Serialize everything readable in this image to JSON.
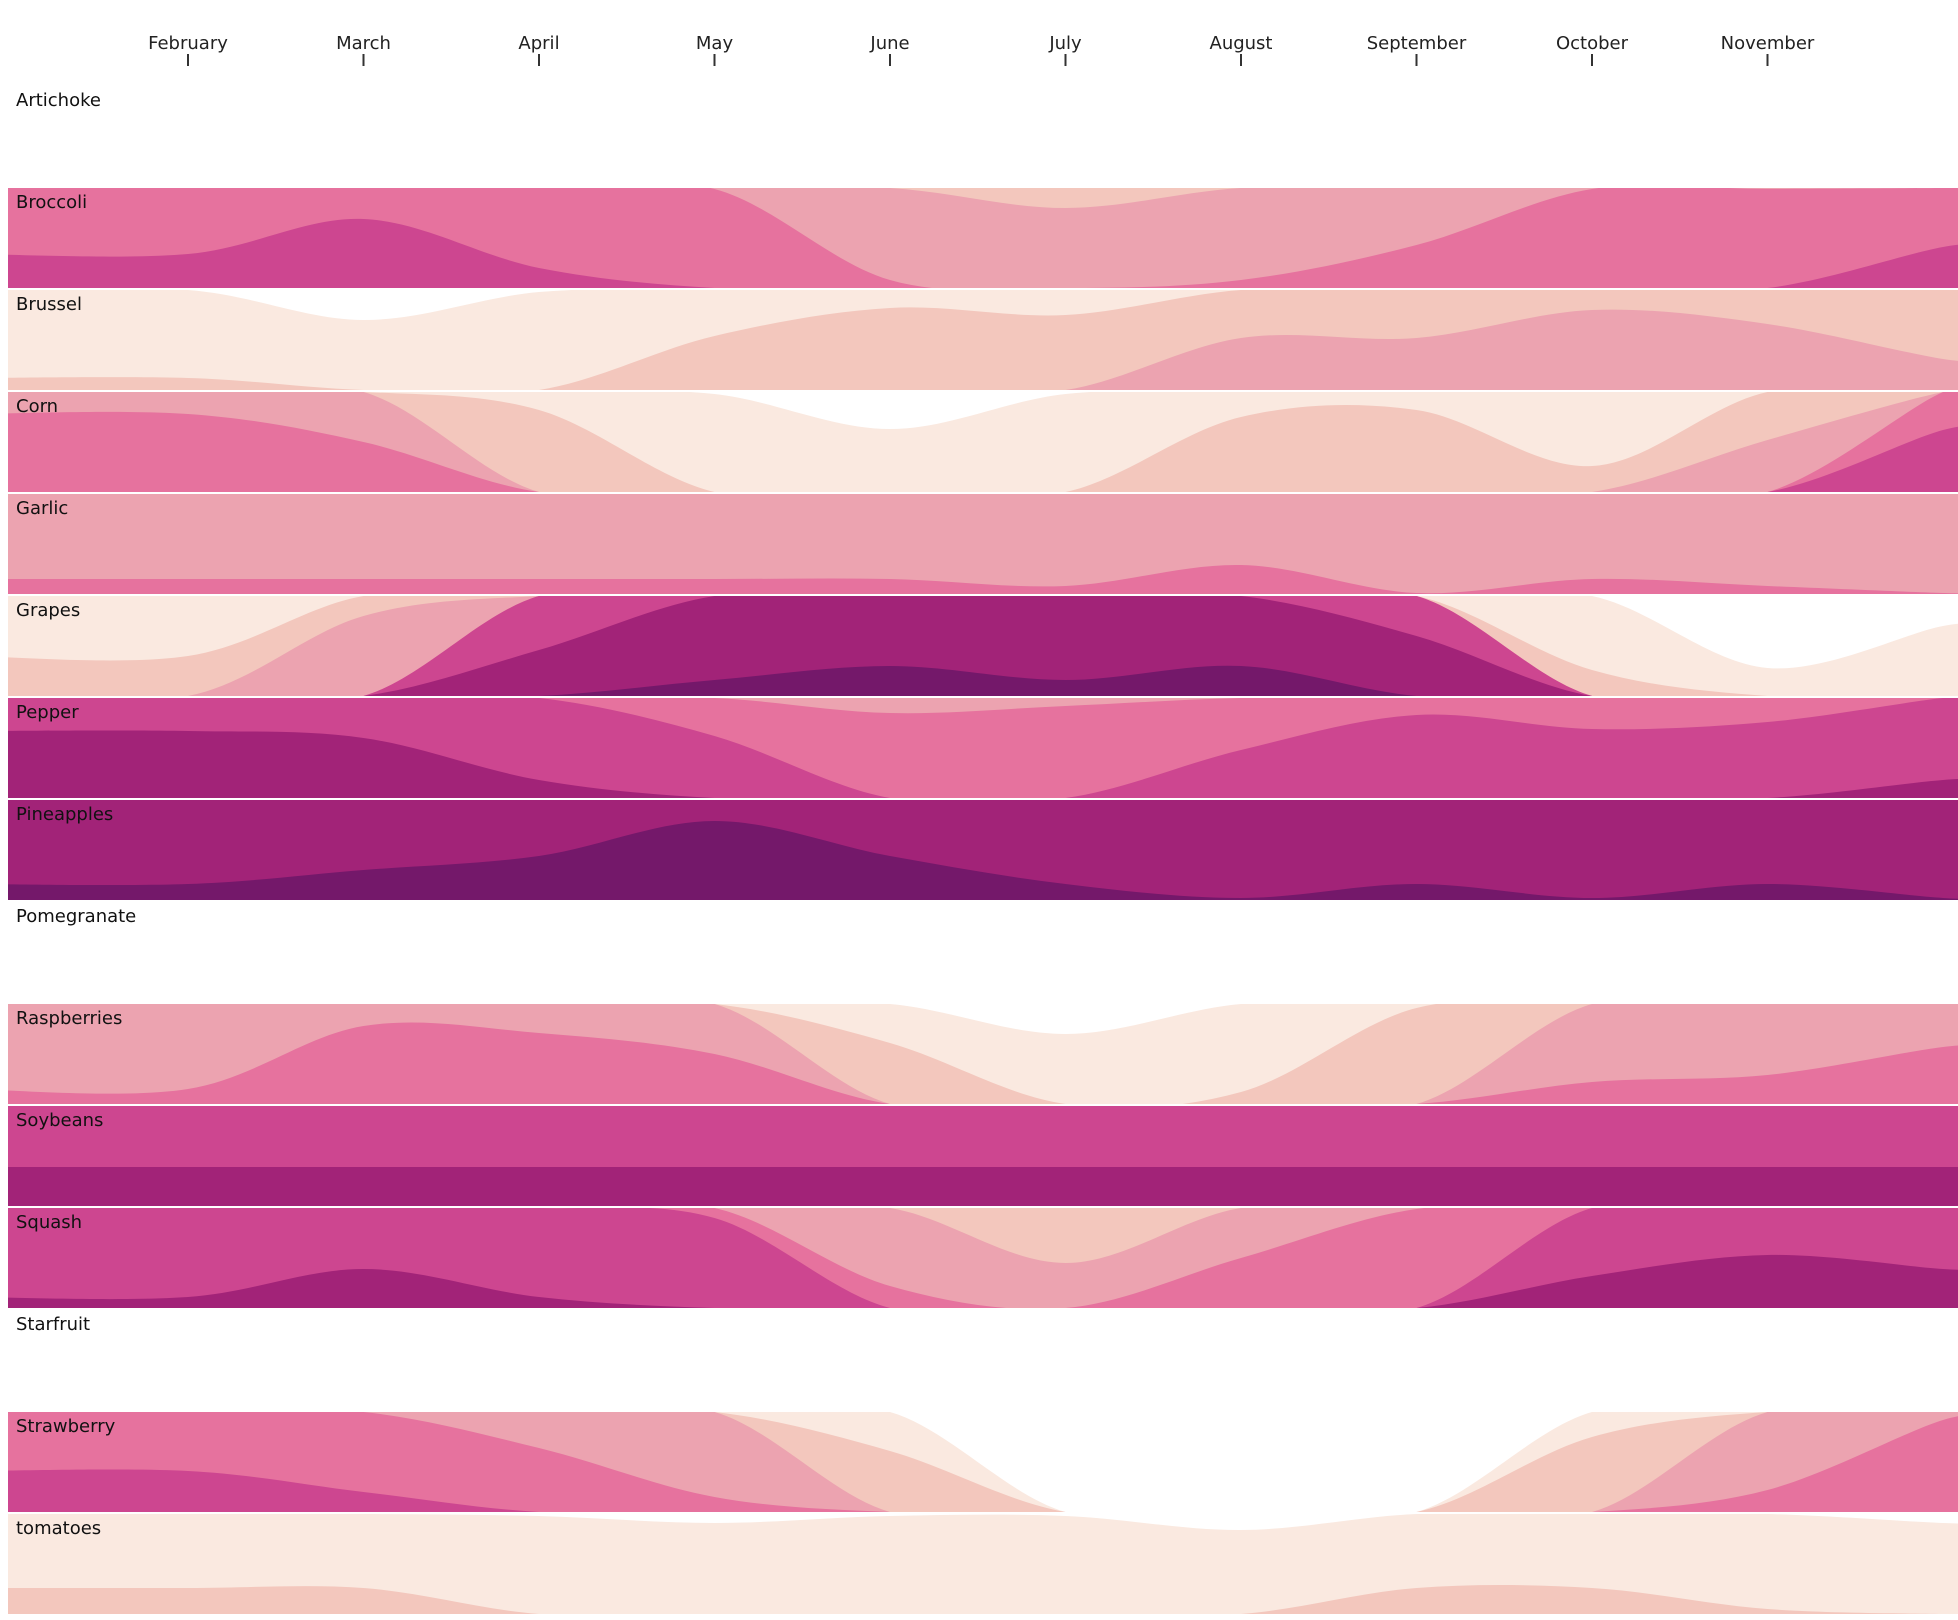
{
  "chart_data": {
    "type": "horizon",
    "x_axis": {
      "ticks": [
        "February",
        "March",
        "April",
        "May",
        "June",
        "July",
        "August",
        "September",
        "October",
        "November"
      ]
    },
    "value_scale": [
      0,
      1
    ],
    "band_colors": [
      "#fae9e0",
      "#f3c7bd",
      "#eca3b0",
      "#e6729e",
      "#cd4690",
      "#a22378",
      "#74186a"
    ],
    "series": [
      {
        "name": "Artichoke",
        "values": [
          0,
          0,
          0,
          0,
          0,
          0,
          0,
          0,
          0,
          0,
          0
        ]
      },
      {
        "name": "Broccoli",
        "values": [
          0.62,
          0.67,
          0.6,
          0.57,
          0.44,
          0.4,
          0.44,
          0.49,
          0.57,
          0.57,
          0.63
        ]
      },
      {
        "name": "Brussel",
        "values": [
          0.16,
          0.1,
          0.14,
          0.22,
          0.26,
          0.25,
          0.36,
          0.36,
          0.4,
          0.38,
          0.33
        ]
      },
      {
        "name": "Corn",
        "values": [
          0.54,
          0.5,
          0.26,
          0.14,
          0.09,
          0.14,
          0.25,
          0.26,
          0.18,
          0.36,
          0.66
        ]
      },
      {
        "name": "Garlic",
        "values": [
          0.45,
          0.45,
          0.45,
          0.45,
          0.45,
          0.44,
          0.47,
          0.43,
          0.45,
          0.44,
          0.43
        ]
      },
      {
        "name": "Grapes",
        "values": [
          0.2,
          0.4,
          0.78,
          0.88,
          0.9,
          0.88,
          0.9,
          0.8,
          0.18,
          0.04,
          0.1
        ]
      },
      {
        "name": "Pepper",
        "values": [
          0.81,
          0.8,
          0.74,
          0.66,
          0.55,
          0.56,
          0.64,
          0.69,
          0.67,
          0.68,
          0.74
        ]
      },
      {
        "name": "Pineapples",
        "values": [
          0.88,
          0.9,
          0.92,
          0.97,
          0.92,
          0.88,
          0.86,
          0.88,
          0.86,
          0.88,
          0.86
        ]
      },
      {
        "name": "Pomegranate",
        "values": [
          0,
          0,
          0,
          0,
          0,
          0,
          0,
          0,
          0,
          0,
          0
        ]
      },
      {
        "name": "Raspberries",
        "values": [
          0.45,
          0.54,
          0.53,
          0.5,
          0.23,
          0.1,
          0.16,
          0.28,
          0.46,
          0.47,
          0.51
        ]
      },
      {
        "name": "Soybeans",
        "values": [
          0.77,
          0.77,
          0.77,
          0.77,
          0.77,
          0.77,
          0.77,
          0.77,
          0.77,
          0.77,
          0.77
        ]
      },
      {
        "name": "Squash",
        "values": [
          0.73,
          0.77,
          0.73,
          0.7,
          0.46,
          0.35,
          0.5,
          0.57,
          0.76,
          0.79,
          0.77
        ]
      },
      {
        "name": "Starfruit",
        "values": [
          0,
          0,
          0,
          0,
          0,
          0,
          0,
          0,
          0,
          0,
          0
        ]
      },
      {
        "name": "Strawberry",
        "values": [
          0.63,
          0.6,
          0.52,
          0.45,
          0.23,
          0,
          0,
          0,
          0.25,
          0.46,
          0.56
        ]
      },
      {
        "name": "tomatoes",
        "values": [
          0.18,
          0.18,
          0.14,
          0.13,
          0.14,
          0.14,
          0.12,
          0.18,
          0.18,
          0.15,
          0.13
        ]
      }
    ]
  }
}
